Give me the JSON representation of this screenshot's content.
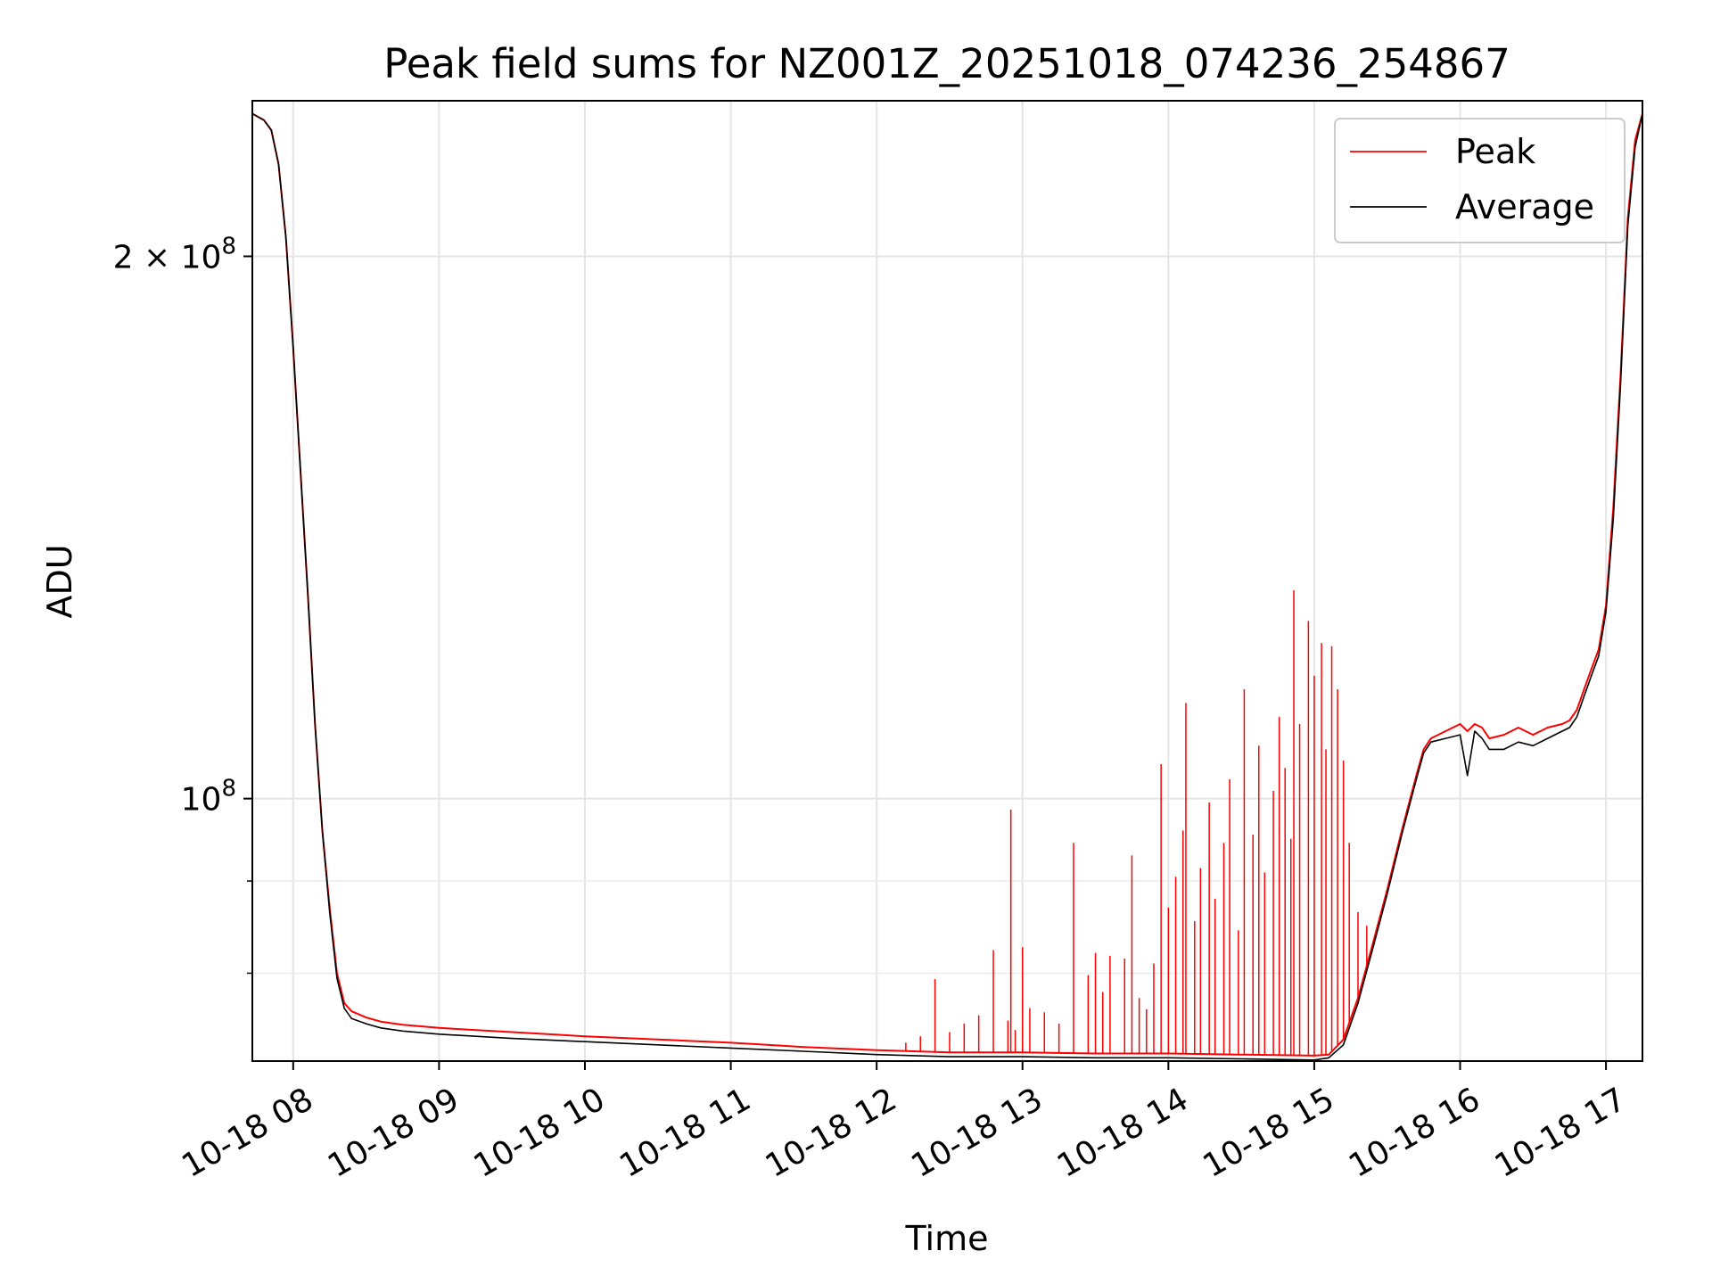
{
  "chart_data": {
    "type": "line",
    "title": "Peak field sums for NZ001Z_20251018_074236_254867",
    "xlabel": "Time",
    "ylabel": "ADU",
    "yscale": "log",
    "xlim_hours": [
      7.72,
      17.25
    ],
    "ylim": [
      71500000,
      244000000
    ],
    "xticks": [
      {
        "value": 8,
        "label": "10-18 08"
      },
      {
        "value": 9,
        "label": "10-18 09"
      },
      {
        "value": 10,
        "label": "10-18 10"
      },
      {
        "value": 11,
        "label": "10-18 11"
      },
      {
        "value": 12,
        "label": "10-18 12"
      },
      {
        "value": 13,
        "label": "10-18 13"
      },
      {
        "value": 14,
        "label": "10-18 14"
      },
      {
        "value": 15,
        "label": "10-18 15"
      },
      {
        "value": 16,
        "label": "10-18 16"
      },
      {
        "value": 17,
        "label": "10-18 17"
      }
    ],
    "yticks_major": [
      {
        "value": 100000000,
        "base": "10",
        "exp": "8",
        "mult": ""
      },
      {
        "value": 200000000,
        "base": "10",
        "exp": "8",
        "mult": "2 × "
      }
    ],
    "yticks_minor": [
      70000000,
      80000000,
      90000000,
      300000000
    ],
    "grid": true,
    "legend": {
      "position": "top-right",
      "entries": [
        {
          "name": "Peak",
          "color": "#ff0000"
        },
        {
          "name": "Average",
          "color": "#000000"
        }
      ]
    },
    "series": [
      {
        "name": "Peak",
        "color": "#ff0000",
        "x_hours": [
          7.72,
          7.8,
          7.85,
          7.9,
          7.95,
          8.0,
          8.05,
          8.1,
          8.15,
          8.2,
          8.25,
          8.3,
          8.35,
          8.4,
          8.5,
          8.6,
          8.75,
          9.0,
          9.5,
          10.0,
          10.5,
          11.0,
          11.5,
          12.0,
          12.5,
          13.0,
          13.5,
          14.0,
          14.5,
          15.0,
          15.1,
          15.2,
          15.3,
          15.4,
          15.5,
          15.6,
          15.7,
          15.75,
          15.8,
          15.9,
          16.0,
          16.05,
          16.1,
          16.15,
          16.2,
          16.3,
          16.4,
          16.5,
          16.6,
          16.7,
          16.75,
          16.8,
          16.85,
          16.9,
          16.95,
          17.0,
          17.05,
          17.1,
          17.15,
          17.2,
          17.25
        ],
        "y_values": [
          240000000,
          238000000,
          235000000,
          225000000,
          205000000,
          178000000,
          152000000,
          130000000,
          110000000,
          96000000,
          87000000,
          80000000,
          77000000,
          76200000,
          75600000,
          75200000,
          74900000,
          74600000,
          74200000,
          73800000,
          73500000,
          73200000,
          72800000,
          72500000,
          72300000,
          72300000,
          72200000,
          72200000,
          72100000,
          72000000,
          72100000,
          73500000,
          77500000,
          83000000,
          89000000,
          96000000,
          103000000,
          106500000,
          108000000,
          109000000,
          110000000,
          109000000,
          110000000,
          109500000,
          108000000,
          108500000,
          109500000,
          108500000,
          109500000,
          110000000,
          110500000,
          112000000,
          115000000,
          118000000,
          121000000,
          128000000,
          145000000,
          172000000,
          210000000,
          232000000,
          240000000
        ]
      },
      {
        "name": "Average",
        "color": "#000000",
        "x_hours": [
          7.72,
          7.8,
          7.85,
          7.9,
          7.95,
          8.0,
          8.05,
          8.1,
          8.15,
          8.2,
          8.25,
          8.3,
          8.35,
          8.4,
          8.5,
          8.6,
          8.75,
          9.0,
          9.5,
          10.0,
          10.5,
          11.0,
          11.5,
          12.0,
          12.5,
          13.0,
          13.5,
          14.0,
          14.5,
          15.0,
          15.1,
          15.2,
          15.3,
          15.4,
          15.5,
          15.6,
          15.7,
          15.75,
          15.8,
          15.9,
          16.0,
          16.05,
          16.1,
          16.15,
          16.2,
          16.3,
          16.4,
          16.5,
          16.6,
          16.7,
          16.75,
          16.8,
          16.85,
          16.9,
          16.95,
          17.0,
          17.05,
          17.1,
          17.15,
          17.2,
          17.25
        ],
        "y_values": [
          240000000,
          238000000,
          235000000,
          225000000,
          205000000,
          178000000,
          152000000,
          130000000,
          110000000,
          96000000,
          86500000,
          79500000,
          76500000,
          75500000,
          75000000,
          74600000,
          74300000,
          74000000,
          73600000,
          73300000,
          73000000,
          72700000,
          72400000,
          72100000,
          71900000,
          71900000,
          71800000,
          71800000,
          71700000,
          71600000,
          71800000,
          73000000,
          77000000,
          82500000,
          88500000,
          95500000,
          102500000,
          106000000,
          107500000,
          108000000,
          108500000,
          103000000,
          109000000,
          108000000,
          106500000,
          106500000,
          107500000,
          107000000,
          108000000,
          109000000,
          109500000,
          111000000,
          114000000,
          117000000,
          120000000,
          127000000,
          143000000,
          170000000,
          208000000,
          230000000,
          240000000
        ]
      }
    ],
    "peak_spikes": [
      {
        "x": 12.2,
        "y": 73200000
      },
      {
        "x": 12.3,
        "y": 73800000
      },
      {
        "x": 12.4,
        "y": 79400000
      },
      {
        "x": 12.5,
        "y": 74200000
      },
      {
        "x": 12.6,
        "y": 75000000
      },
      {
        "x": 12.7,
        "y": 75800000
      },
      {
        "x": 12.8,
        "y": 82400000
      },
      {
        "x": 12.9,
        "y": 75300000
      },
      {
        "x": 12.92,
        "y": 98600000
      },
      {
        "x": 12.95,
        "y": 74400000
      },
      {
        "x": 13.0,
        "y": 82700000
      },
      {
        "x": 13.05,
        "y": 76500000
      },
      {
        "x": 13.15,
        "y": 76100000
      },
      {
        "x": 13.25,
        "y": 75000000
      },
      {
        "x": 13.35,
        "y": 94500000
      },
      {
        "x": 13.45,
        "y": 79800000
      },
      {
        "x": 13.5,
        "y": 82100000
      },
      {
        "x": 13.55,
        "y": 78100000
      },
      {
        "x": 13.6,
        "y": 81800000
      },
      {
        "x": 13.7,
        "y": 81500000
      },
      {
        "x": 13.75,
        "y": 93000000
      },
      {
        "x": 13.8,
        "y": 77500000
      },
      {
        "x": 13.85,
        "y": 76400000
      },
      {
        "x": 13.9,
        "y": 81000000
      },
      {
        "x": 13.95,
        "y": 104500000
      },
      {
        "x": 14.0,
        "y": 87000000
      },
      {
        "x": 14.05,
        "y": 90500000
      },
      {
        "x": 14.1,
        "y": 96000000
      },
      {
        "x": 14.12,
        "y": 113000000
      },
      {
        "x": 14.18,
        "y": 85500000
      },
      {
        "x": 14.22,
        "y": 91500000
      },
      {
        "x": 14.28,
        "y": 99500000
      },
      {
        "x": 14.32,
        "y": 88000000
      },
      {
        "x": 14.38,
        "y": 94500000
      },
      {
        "x": 14.42,
        "y": 102500000
      },
      {
        "x": 14.48,
        "y": 84500000
      },
      {
        "x": 14.52,
        "y": 115000000
      },
      {
        "x": 14.58,
        "y": 95500000
      },
      {
        "x": 14.62,
        "y": 107000000
      },
      {
        "x": 14.66,
        "y": 91000000
      },
      {
        "x": 14.72,
        "y": 101000000
      },
      {
        "x": 14.76,
        "y": 111000000
      },
      {
        "x": 14.8,
        "y": 104000000
      },
      {
        "x": 14.84,
        "y": 95000000
      },
      {
        "x": 14.86,
        "y": 130500000
      },
      {
        "x": 14.9,
        "y": 110000000
      },
      {
        "x": 14.96,
        "y": 125500000
      },
      {
        "x": 15.0,
        "y": 117000000
      },
      {
        "x": 15.05,
        "y": 122000000
      },
      {
        "x": 15.08,
        "y": 106500000
      },
      {
        "x": 15.12,
        "y": 121500000
      },
      {
        "x": 15.16,
        "y": 115000000
      },
      {
        "x": 15.2,
        "y": 105000000
      },
      {
        "x": 15.24,
        "y": 94500000
      },
      {
        "x": 15.3,
        "y": 86500000
      },
      {
        "x": 15.36,
        "y": 85000000
      }
    ]
  }
}
